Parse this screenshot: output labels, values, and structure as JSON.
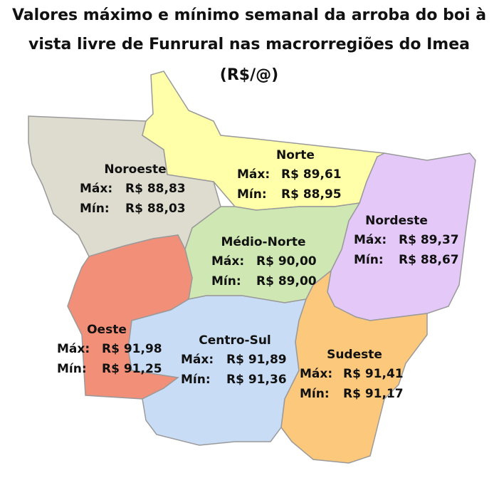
{
  "title_lines": [
    "Valores máximo e mínimo semanal da arroba do boi à",
    "vista livre de Funrural nas macrorregiões do Imea",
    "(R$/@)"
  ],
  "regions": [
    {
      "name": "Noroeste",
      "max_label": "Máx:",
      "max": "R$ 88,83",
      "min_label": "Mín:",
      "min": "R$ 88,03"
    },
    {
      "name": "Norte",
      "max_label": "Máx:",
      "max": "R$ 89,61",
      "min_label": "Mín:",
      "min": "R$ 88,95"
    },
    {
      "name": "Nordeste",
      "max_label": "Máx:",
      "max": "R$ 89,37",
      "min_label": "Mín:",
      "min": "R$ 88,67"
    },
    {
      "name": "Médio-Norte",
      "max_label": "Máx:",
      "max": "R$ 90,00",
      "min_label": "Mín:",
      "min": "R$ 89,00"
    },
    {
      "name": "Oeste",
      "max_label": "Máx:",
      "max": "R$ 91,98",
      "min_label": "Mín:",
      "min": "R$ 91,25"
    },
    {
      "name": "Centro-Sul",
      "max_label": "Máx:",
      "max": "R$ 91,89",
      "min_label": "Mín:",
      "min": "R$ 91,36"
    },
    {
      "name": "Sudeste",
      "max_label": "Máx:",
      "max": "R$ 91,41",
      "min_label": "Mín:",
      "min": "R$ 91,17"
    }
  ]
}
